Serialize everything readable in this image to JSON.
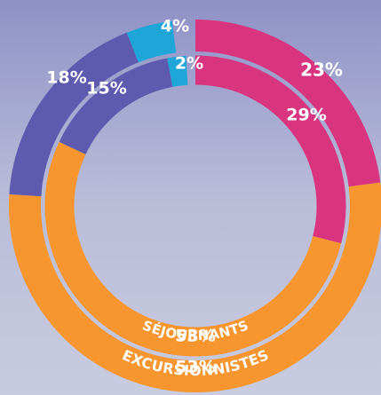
{
  "chart_data": {
    "type": "donut",
    "colors": [
      "#d9347f",
      "#f7952f",
      "#5e5ab0",
      "#1ea6d9"
    ],
    "series": [
      {
        "name": "EXCURSIONNISTES",
        "values": [
          23,
          53,
          18,
          4
        ],
        "value_labels": [
          "23%",
          "53%",
          "18%",
          "4%"
        ]
      },
      {
        "name": "SÉJOURNANTS",
        "values": [
          29,
          53,
          15,
          2
        ],
        "value_labels": [
          "29%",
          "53%",
          "15%",
          "2%"
        ]
      }
    ]
  }
}
